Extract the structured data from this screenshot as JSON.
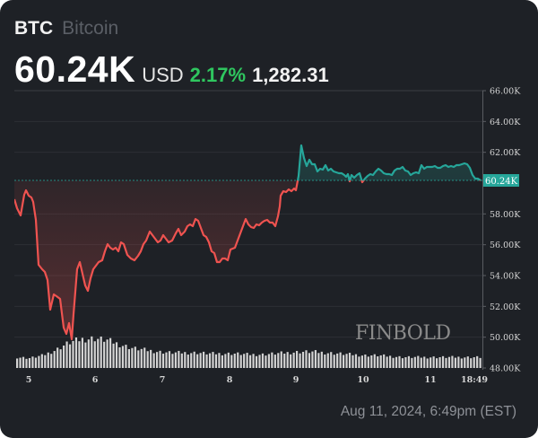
{
  "header": {
    "symbol": "BTC",
    "name": "Bitcoin",
    "price": "60.24K",
    "currency": "USD",
    "change_pct": "2.17%",
    "change_abs": "1,282.31"
  },
  "footer": {
    "timestamp": "Aug 11, 2024, 6:49pm (EST)"
  },
  "watermark": "FINBOLD",
  "colors": {
    "background": "#1e2126",
    "up": "#26a69a",
    "down": "#ef5350",
    "pct_green": "#2fc65f",
    "volume": "#d0d0d0"
  },
  "chart_data": {
    "type": "line",
    "title": "BTC Bitcoin",
    "xlabel": "",
    "ylabel": "USD",
    "x_ticks": [
      "5",
      "6",
      "7",
      "8",
      "9",
      "10",
      "11",
      "18:49"
    ],
    "y_ticks": [
      "48.00K",
      "50.00K",
      "52.00K",
      "54.00K",
      "56.00K",
      "58.00K",
      "60.24K",
      "62.00K",
      "64.00K",
      "66.00K"
    ],
    "ylim": [
      48000,
      66000
    ],
    "current_price_label": "60.24K",
    "baseline_price": 58960,
    "grid": true,
    "series": [
      {
        "name": "BTC/USD",
        "x": [
          "Aug 4 20:00",
          "Aug 5 00:00",
          "Aug 5 03:00",
          "Aug 5 06:00",
          "Aug 5 09:00",
          "Aug 5 12:00",
          "Aug 5 15:00",
          "Aug 5 18:00",
          "Aug 5 21:00",
          "Aug 6 00:00",
          "Aug 6 03:00",
          "Aug 6 06:00",
          "Aug 6 09:00",
          "Aug 6 12:00",
          "Aug 6 15:00",
          "Aug 6 18:00",
          "Aug 6 21:00",
          "Aug 7 00:00",
          "Aug 7 06:00",
          "Aug 7 12:00",
          "Aug 7 18:00",
          "Aug 8 00:00",
          "Aug 8 06:00",
          "Aug 8 12:00",
          "Aug 8 18:00",
          "Aug 8 21:00",
          "Aug 9 00:00",
          "Aug 9 03:00",
          "Aug 9 09:00",
          "Aug 9 15:00",
          "Aug 9 21:00",
          "Aug 10 06:00",
          "Aug 10 12:00",
          "Aug 10 18:00",
          "Aug 11 06:00",
          "Aug 11 12:00",
          "Aug 11 18:49"
        ],
        "values": [
          59000,
          58100,
          59500,
          58000,
          53800,
          52600,
          50900,
          52700,
          49700,
          53100,
          55100,
          53500,
          55700,
          56100,
          55500,
          55000,
          56700,
          56800,
          56700,
          57300,
          55900,
          56200,
          54700,
          57100,
          57500,
          59700,
          62300,
          61200,
          60900,
          60500,
          60400,
          60200,
          60600,
          60700,
          61000,
          61100,
          60240
        ]
      },
      {
        "name": "Volume",
        "values": [
          12,
          11,
          14,
          20,
          28,
          32,
          33,
          31,
          26,
          22,
          20,
          18,
          17,
          17,
          17,
          16,
          16,
          16,
          15,
          15,
          16,
          17,
          18,
          18,
          17,
          16,
          15,
          14,
          14,
          13,
          12,
          12,
          12,
          12,
          12,
          12,
          12
        ]
      }
    ]
  }
}
